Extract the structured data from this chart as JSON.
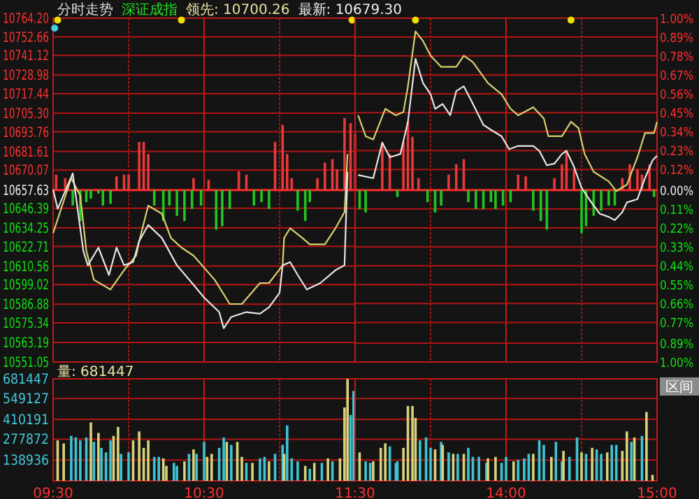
{
  "chart_data": [
    {
      "type": "line",
      "title": "分时走势",
      "subtitle": "深证成指",
      "annotations": [
        "领先: 10700.26",
        "最新: 10679.30"
      ],
      "xlim": [
        9.5,
        11.5
      ],
      "xticks": [
        {
          "value": 10,
          "label": null
        },
        {
          "value": 10.5,
          "label": null
        },
        {
          "value": 11,
          "label": null
        }
      ],
      "ylim": [
        10551.05,
        10764.2
      ],
      "yticks": [
        {
          "value": 10764.2,
          "label": "10764.20"
        },
        10752.66,
        10741.12,
        10728.98,
        10717.44,
        {
          "value": 10705.3,
          "label": "10705.30"
        },
        10693.76,
        10681.61,
        10670.07,
        10657.63,
        10646.39,
        10634.25,
        10622.71,
        10610.56,
        10599.02,
        10586.88,
        10575.34,
        10563.19,
        10551.05
      ],
      "y2lim": [
        -1,
        1
      ],
      "ref_lines": [
        {
          "axis": "y",
          "value": 10657.63,
          "color": "#ff2a2a"
        },
        {
          "axis": "x",
          "value": 10.5,
          "color": "#c41818"
        }
      ],
      "grid": true,
      "tick_labels": "y",
      "series": [
        {
          "type": "bar",
          "axis": "y2",
          "color": "#e8383a",
          "x": [
            9.52,
            9.58,
            9.92,
            9.97,
            10,
            10.07,
            10.1,
            10.13,
            10.43,
            10.53,
            10.73,
            10.78,
            10.97,
            11.02,
            11.05,
            11.08,
            11.25,
            11.3,
            11.35,
            11.38,
            11.43,
            11.47,
            11.5
          ],
          "values": [
            0.09,
            0.07,
            0.08,
            0.09,
            0.09,
            0.28,
            0.28,
            0.21,
            0.07,
            0.06,
            0.11,
            0.09,
            0.28,
            0.38,
            0.21,
            0.07,
            0.07,
            0.16,
            0.18,
            0.12,
            0.42,
            0.39,
            0.33
          ]
        },
        {
          "type": "bar",
          "axis": "y2",
          "color": "#22c422",
          "x": [
            9.63,
            9.68,
            9.72,
            9.75,
            9.8,
            9.83,
            9.88,
            10.17,
            10.23,
            10.27,
            10.32,
            10.37,
            10.42,
            10.48,
            10.58,
            10.62,
            10.67,
            10.83,
            10.88,
            10.93,
            11.12,
            11.17,
            11.2
          ],
          "values": [
            -0.09,
            -0.18,
            -0.07,
            -0.05,
            -0.02,
            -0.09,
            -0.08,
            -0.09,
            -0.18,
            -0.09,
            -0.15,
            -0.18,
            -0.11,
            -0.09,
            -0.23,
            -0.21,
            -0.11,
            -0.09,
            -0.07,
            -0.11,
            -0.12,
            -0.18,
            -0.07
          ]
        },
        {
          "color": "#d8d070",
          "x": [
            9.5,
            9.62,
            9.68,
            9.72,
            9.77,
            9.88,
            9.97,
            10.05,
            10.07,
            10.13,
            10.22,
            10.28,
            10.35,
            10.43,
            10.57,
            10.67,
            10.75,
            10.87,
            10.93,
            11.02,
            11.03,
            11.07,
            11.15,
            11.2,
            11.3,
            11.37,
            11.43,
            11.45
          ],
          "values": [
            10631,
            10665,
            10654,
            10620,
            10602,
            10596,
            10608,
            10617,
            10626,
            10648,
            10643,
            10628,
            10622,
            10617,
            10602,
            10587,
            10587,
            10600,
            10600,
            10611,
            10628,
            10634,
            10628,
            10624,
            10624,
            10634,
            10644,
            10680
          ]
        },
        {
          "color": "#e6e6e6",
          "x": [
            9.5,
            9.53,
            9.63,
            9.7,
            9.73,
            9.8,
            9.87,
            9.92,
            9.97,
            10.03,
            10.07,
            10.13,
            10.22,
            10.32,
            10.42,
            10.5,
            10.6,
            10.63,
            10.68,
            10.78,
            10.87,
            10.93,
            11,
            11.02,
            11.07,
            11.12,
            11.18,
            11.27,
            11.37,
            11.43,
            11.45
          ],
          "values": [
            10658,
            10646,
            10668,
            10620,
            10611,
            10622,
            10605,
            10622,
            10611,
            10613,
            10626,
            10636,
            10628,
            10611,
            10600,
            10591,
            10582,
            10572,
            10579,
            10582,
            10581,
            10585,
            10594,
            10611,
            10613,
            10605,
            10596,
            10600,
            10608,
            10611,
            10669
          ]
        },
        {
          "type": "scatter",
          "marker": "circle",
          "color": "#f0e000",
          "x": [
            9.53,
            10.35,
            11.48
          ],
          "values": [
            10763,
            10763,
            10763
          ]
        },
        {
          "type": "scatter",
          "marker": "circle",
          "color": "#40d0e0",
          "x": [
            9.51
          ],
          "values": [
            10758
          ]
        }
      ]
    },
    {
      "type": "line",
      "xlim": [
        13,
        15
      ],
      "xticks": [
        {
          "value": 13.5,
          "label": null
        },
        {
          "value": 14,
          "label": null
        },
        {
          "value": 14.5,
          "label": null
        }
      ],
      "ylim": [
        10551.05,
        10764.2
      ],
      "y2lim": [
        -1,
        1
      ],
      "y2ticks": [
        {
          "value": 1,
          "label": "1.00%"
        },
        {
          "value": 0.89,
          "label": "0.89%"
        },
        {
          "value": 0.78,
          "label": "0.78%"
        },
        {
          "value": 0.67,
          "label": "0.67%"
        },
        {
          "value": 0.56,
          "label": "0.56%"
        },
        {
          "value": 0.45,
          "label": "0.45%"
        },
        {
          "value": 0.34,
          "label": "0.34%"
        },
        {
          "value": 0.23,
          "label": "0.23%"
        },
        {
          "value": 0.12,
          "label": "0.12%"
        },
        {
          "value": 0,
          "label": "0.00%"
        },
        {
          "value": -0.11,
          "label": "0.11%"
        },
        {
          "value": -0.22,
          "label": "0.22%"
        },
        {
          "value": -0.33,
          "label": "0.33%"
        },
        {
          "value": -0.44,
          "label": "0.44%"
        },
        {
          "value": -0.55,
          "label": "0.55%"
        },
        {
          "value": -0.66,
          "label": "0.66%"
        },
        {
          "value": -0.77,
          "label": "0.77%"
        },
        {
          "value": -0.89,
          "label": "0.89%"
        },
        {
          "value": -1,
          "label": "1.00%"
        }
      ],
      "ref_lines": [
        {
          "axis": "y2",
          "value": 0,
          "color": "#ff2a2a"
        },
        {
          "axis": "x",
          "value": 14,
          "color": "#c41818"
        }
      ],
      "grid": true,
      "tick_labels": "y",
      "series": [
        {
          "type": "bar",
          "axis": "y2",
          "color": "#e8383a",
          "x": [
            13.18,
            13.23,
            13.32,
            13.35,
            13.38,
            13.42,
            13.62,
            13.67,
            13.72,
            14.08,
            14.13,
            14.32,
            14.37,
            14.4,
            14.45,
            14.77,
            14.82,
            14.87,
            14.9,
            14.95
          ],
          "values": [
            0.28,
            0.21,
            0.28,
            0.4,
            0.31,
            0.07,
            0.09,
            0.15,
            0.18,
            0.09,
            0.08,
            0.07,
            0.15,
            0.22,
            0.12,
            0.07,
            0.15,
            0.12,
            0.09,
            0.15
          ]
        },
        {
          "type": "bar",
          "axis": "y2",
          "color": "#22c422",
          "x": [
            13.03,
            13.07,
            13.28,
            13.48,
            13.53,
            13.57,
            13.75,
            13.8,
            13.85,
            13.9,
            13.93,
            13.98,
            14.03,
            14.18,
            14.23,
            14.27,
            14.5,
            14.53,
            14.58,
            14.63,
            14.68,
            14.72,
            14.98
          ],
          "values": [
            -0.11,
            -0.13,
            -0.04,
            -0.07,
            -0.13,
            -0.09,
            -0.07,
            -0.11,
            -0.11,
            -0.07,
            -0.11,
            -0.09,
            -0.07,
            -0.12,
            -0.18,
            -0.23,
            -0.25,
            -0.21,
            -0.15,
            -0.12,
            -0.09,
            -0.09,
            -0.04
          ]
        },
        {
          "color": "#d8d070",
          "x": [
            13.02,
            13.07,
            13.12,
            13.2,
            13.27,
            13.32,
            13.35,
            13.4,
            13.45,
            13.5,
            13.57,
            13.67,
            13.72,
            13.78,
            13.88,
            13.97,
            14.03,
            14.08,
            14.18,
            14.25,
            14.28,
            14.37,
            14.43,
            14.48,
            14.52,
            14.58,
            14.68,
            14.73,
            14.8,
            14.87,
            14.92,
            14.98,
            15
          ],
          "values": [
            10704,
            10691,
            10689,
            10708,
            10704,
            10706,
            10722,
            10756,
            10750,
            10741,
            10734,
            10734,
            10741,
            10737,
            10724,
            10717,
            10708,
            10704,
            10709,
            10702,
            10691,
            10691,
            10700,
            10696,
            10680,
            10669,
            10663,
            10657,
            10661,
            10678,
            10693,
            10693,
            10700
          ]
        },
        {
          "color": "#e6e6e6",
          "x": [
            13.02,
            13.12,
            13.18,
            13.23,
            13.3,
            13.35,
            13.4,
            13.45,
            13.5,
            13.53,
            13.58,
            13.63,
            13.67,
            13.72,
            13.77,
            13.85,
            13.9,
            13.97,
            14.02,
            14.08,
            14.18,
            14.22,
            14.27,
            14.32,
            14.37,
            14.4,
            14.45,
            14.5,
            14.55,
            14.62,
            14.68,
            14.72,
            14.77,
            14.8,
            14.87,
            14.92,
            14.97,
            15
          ],
          "values": [
            10667,
            10665,
            10687,
            10678,
            10680,
            10700,
            10739,
            10724,
            10717,
            10708,
            10711,
            10704,
            10719,
            10722,
            10713,
            10698,
            10695,
            10691,
            10683,
            10685,
            10685,
            10682,
            10673,
            10674,
            10680,
            10682,
            10672,
            10659,
            10652,
            10643,
            10641,
            10639,
            10644,
            10650,
            10652,
            10665,
            10676,
            10679
          ]
        },
        {
          "type": "scatter",
          "marker": "circle",
          "color": "#f0e000",
          "x": [
            13.4,
            14.43
          ],
          "values": [
            10763,
            10763
          ]
        }
      ]
    },
    {
      "type": "bar",
      "annotations": [
        "量: 681447"
      ],
      "xlim": [
        9.5,
        11.5
      ],
      "xticks": [
        {
          "value": 9.5,
          "label": "09:30"
        },
        {
          "value": 10,
          "label": null
        },
        {
          "value": 10.5,
          "label": "10:30"
        },
        {
          "value": 11,
          "label": null
        },
        {
          "value": 11.5,
          "label": "11:30"
        }
      ],
      "ylim": [
        0,
        681447
      ],
      "yticks": [
        138936,
        277872,
        410191,
        549127,
        681447
      ],
      "grid": true,
      "ref_lines": [
        {
          "axis": "x",
          "value": 10.5,
          "color": "#c41818"
        }
      ],
      "x": [
        9.53,
        9.57,
        9.62,
        9.65,
        9.68,
        9.72,
        9.75,
        9.77,
        9.8,
        9.82,
        9.85,
        9.88,
        9.9,
        9.93,
        9.95,
        10,
        10.03,
        10.07,
        10.1,
        10.13,
        10.17,
        10.2,
        10.23,
        10.25,
        10.3,
        10.32,
        10.37,
        10.4,
        10.43,
        10.45,
        10.5,
        10.52,
        10.55,
        10.6,
        10.63,
        10.65,
        10.68,
        10.72,
        10.75,
        10.78,
        10.82,
        10.87,
        10.9,
        10.93,
        10.97,
        11.02,
        11.03,
        11.05,
        11.08,
        11.12,
        11.17,
        11.2,
        11.23,
        11.28,
        11.32,
        11.35,
        11.4,
        11.43,
        11.45,
        11.47,
        11.49
      ],
      "values": [
        270000,
        250000,
        300000,
        290000,
        270000,
        290000,
        390000,
        260000,
        320000,
        220000,
        190000,
        270000,
        300000,
        360000,
        180000,
        190000,
        270000,
        330000,
        220000,
        270000,
        160000,
        160000,
        150000,
        100000,
        120000,
        100000,
        130000,
        180000,
        210000,
        180000,
        260000,
        160000,
        180000,
        220000,
        290000,
        260000,
        240000,
        260000,
        160000,
        120000,
        120000,
        150000,
        160000,
        130000,
        180000,
        240000,
        180000,
        370000,
        150000,
        130000,
        100000,
        80000,
        120000,
        120000,
        150000,
        130000,
        150000,
        490000,
        680000,
        440000,
        600000
      ],
      "colors": [
        "#d8d27a",
        "#d8d27a",
        "#3fc3d2",
        "#3fc3d2",
        "#3fc3d2",
        "#3fc3d2",
        "#d8d27a",
        "#3fc3d2",
        "#d8d27a",
        "#3fc3d2",
        "#3fc3d2",
        "#3fc3d2",
        "#d8d27a",
        "#d8d27a",
        "#3fc3d2",
        "#3fc3d2",
        "#d8d27a",
        "#d8d27a",
        "#d8d27a",
        "#d8d27a",
        "#3fc3d2",
        "#3fc3d2",
        "#d8d27a",
        "#d8d27a",
        "#3fc3d2",
        "#3fc3d2",
        "#d8d27a",
        "#3fc3d2",
        "#d8d27a",
        "#3fc3d2",
        "#3fc3d2",
        "#d8d27a",
        "#d8d27a",
        "#3fc3d2",
        "#3fc3d2",
        "#d8d27a",
        "#3fc3d2",
        "#d8d27a",
        "#d8d27a",
        "#3fc3d2",
        "#d8d27a",
        "#3fc3d2",
        "#3fc3d2",
        "#d8d27a",
        "#3fc3d2",
        "#3fc3d2",
        "#d8d27a",
        "#3fc3d2",
        "#3fc3d2",
        "#3fc3d2",
        "#d8d27a",
        "#3fc3d2",
        "#d8d27a",
        "#3fc3d2",
        "#d8d27a",
        "#3fc3d2",
        "#d8d27a",
        "#d8d27a",
        "#d8d27a",
        "#3fc3d2",
        "#3fc3d2"
      ]
    },
    {
      "type": "bar",
      "annotations": [
        "区间"
      ],
      "xlim": [
        13,
        15
      ],
      "xticks": [
        {
          "value": 13.5,
          "label": null
        },
        {
          "value": 14,
          "label": "14:00"
        },
        {
          "value": 14.5,
          "label": null
        },
        {
          "value": 15,
          "label": "15:00"
        }
      ],
      "ylim": [
        0,
        681447
      ],
      "yticks": [
        {
          "value": 138936,
          "label": null
        },
        {
          "value": 277872,
          "label": null
        },
        {
          "value": 410191,
          "label": null
        },
        {
          "value": 549127,
          "label": null
        },
        {
          "value": 681447,
          "label": null
        }
      ],
      "grid": true,
      "tick_labels": "x",
      "ref_lines": [
        {
          "axis": "x",
          "value": 14,
          "color": "#c41818"
        }
      ],
      "x": [
        13.03,
        13.07,
        13.1,
        13.12,
        13.17,
        13.2,
        13.23,
        13.27,
        13.28,
        13.32,
        13.35,
        13.38,
        13.4,
        13.43,
        13.47,
        13.5,
        13.53,
        13.57,
        13.58,
        13.62,
        13.65,
        13.68,
        13.72,
        13.75,
        13.78,
        13.82,
        13.87,
        13.88,
        13.93,
        13.97,
        14,
        14.05,
        14.08,
        14.12,
        14.15,
        14.18,
        14.22,
        14.25,
        14.3,
        14.33,
        14.37,
        14.38,
        14.42,
        14.47,
        14.5,
        14.53,
        14.57,
        14.6,
        14.63,
        14.67,
        14.7,
        14.73,
        14.77,
        14.8,
        14.83,
        14.85,
        14.9,
        14.93,
        14.97
      ],
      "values": [
        190000,
        130000,
        120000,
        130000,
        220000,
        250000,
        230000,
        120000,
        130000,
        220000,
        500000,
        500000,
        420000,
        270000,
        290000,
        220000,
        210000,
        260000,
        240000,
        190000,
        180000,
        180000,
        180000,
        220000,
        160000,
        160000,
        120000,
        150000,
        160000,
        120000,
        160000,
        130000,
        140000,
        150000,
        180000,
        180000,
        270000,
        240000,
        160000,
        260000,
        130000,
        200000,
        160000,
        290000,
        190000,
        180000,
        220000,
        210000,
        180000,
        190000,
        240000,
        240000,
        200000,
        330000,
        260000,
        290000,
        300000,
        460000,
        40000
      ],
      "colors": [
        "#d8d27a",
        "#3fc3d2",
        "#3fc3d2",
        "#d8d27a",
        "#d8d27a",
        "#d8d27a",
        "#3fc3d2",
        "#3fc3d2",
        "#3fc3d2",
        "#d8d27a",
        "#d8d27a",
        "#d8d27a",
        "#d8d27a",
        "#3fc3d2",
        "#3fc3d2",
        "#3fc3d2",
        "#d8d27a",
        "#3fc3d2",
        "#d8d27a",
        "#3fc3d2",
        "#d8d27a",
        "#3fc3d2",
        "#d8d27a",
        "#3fc3d2",
        "#3fc3d2",
        "#3fc3d2",
        "#3fc3d2",
        "#d8d27a",
        "#d8d27a",
        "#3fc3d2",
        "#3fc3d2",
        "#d8d27a",
        "#3fc3d2",
        "#3fc3d2",
        "#3fc3d2",
        "#d8d27a",
        "#3fc3d2",
        "#3fc3d2",
        "#d8d27a",
        "#3fc3d2",
        "#3fc3d2",
        "#d8d27a",
        "#3fc3d2",
        "#3fc3d2",
        "#d8d27a",
        "#3fc3d2",
        "#d8d27a",
        "#3fc3d2",
        "#3fc3d2",
        "#d8d27a",
        "#3fc3d2",
        "#3fc3d2",
        "#d8d27a",
        "#d8d27a",
        "#3fc3d2",
        "#d8d27a",
        "#3fc3d2",
        "#d8d27a",
        "#d8d27a"
      ]
    }
  ]
}
